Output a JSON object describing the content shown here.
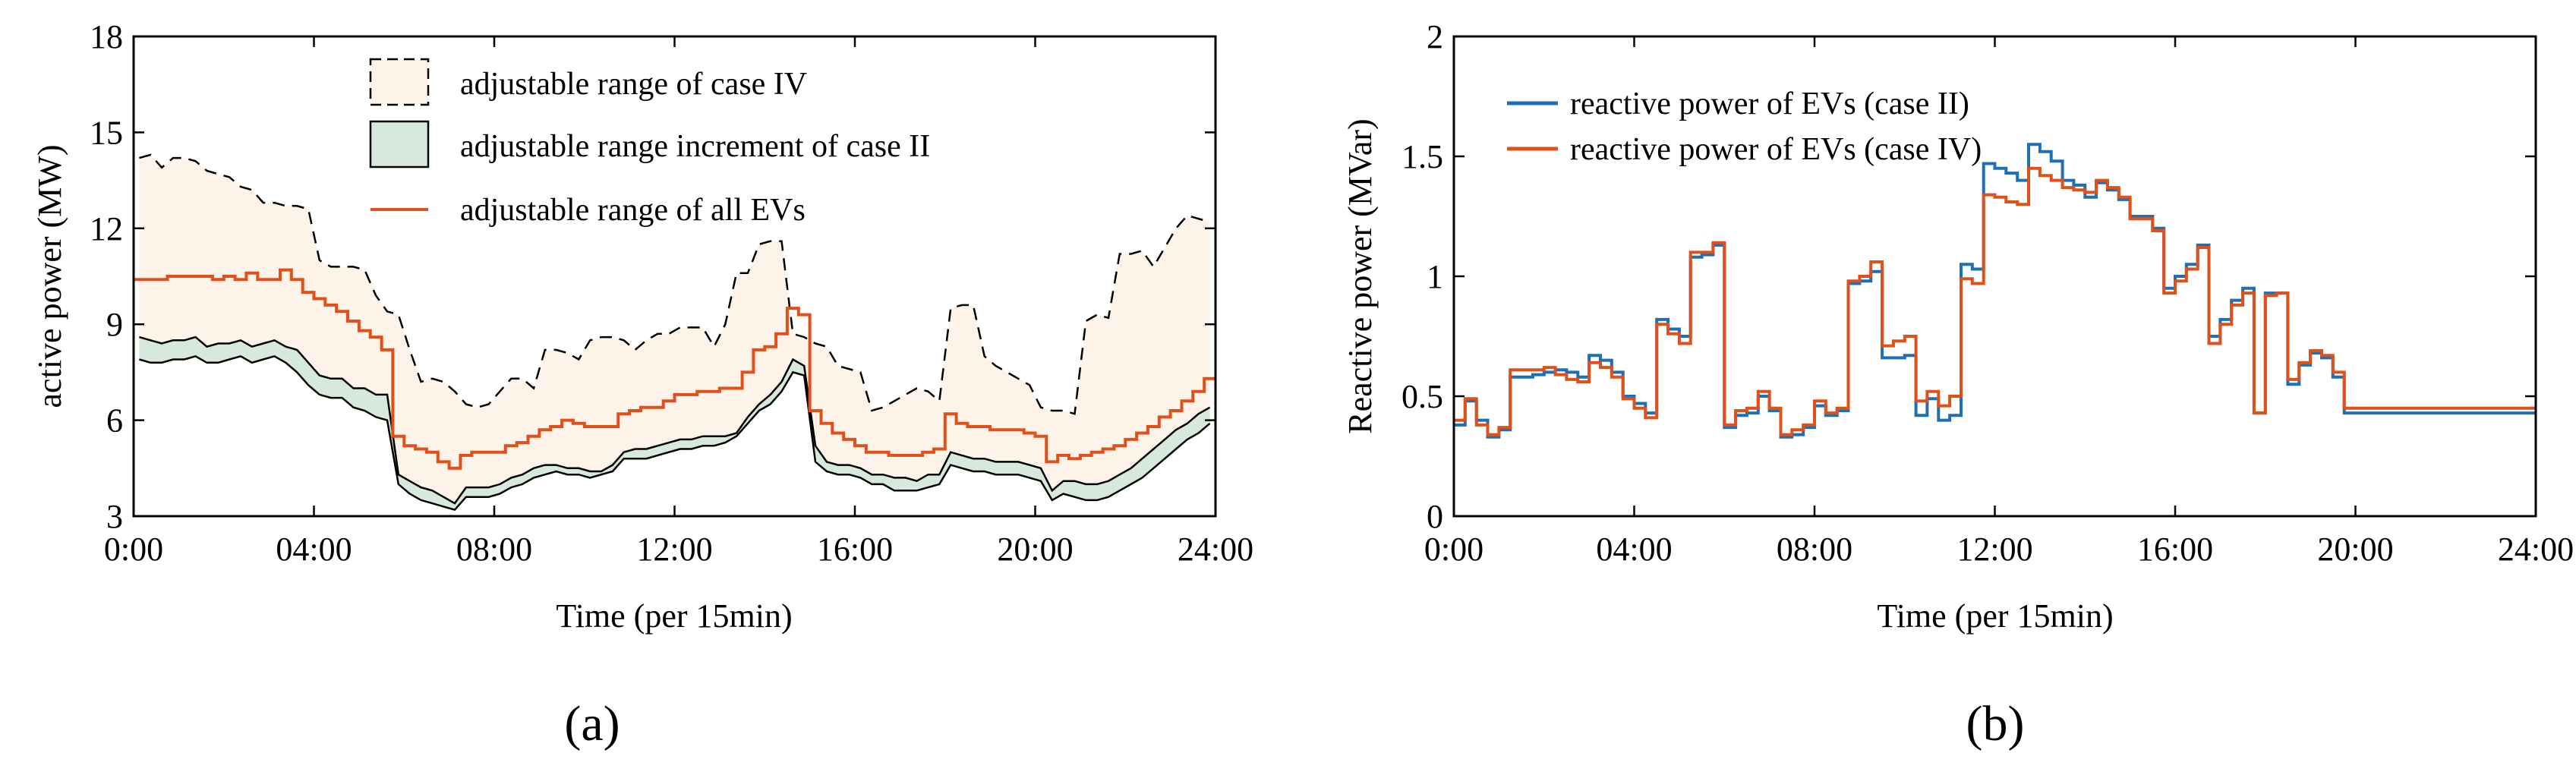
{
  "chart_data": [
    {
      "id": "a",
      "type": "line",
      "panel_label": "(a)",
      "xlabel": "Time (per 15min)",
      "ylabel": "active power (MW)",
      "xlim": [
        0,
        96
      ],
      "ylim": [
        3,
        18
      ],
      "x_ticks": [
        0,
        16,
        32,
        48,
        64,
        80,
        96
      ],
      "x_tick_labels": [
        "0:00",
        "04:00",
        "08:00",
        "12:00",
        "16:00",
        "20:00",
        "24:00"
      ],
      "y_ticks": [
        3,
        6,
        9,
        12,
        15,
        18
      ],
      "y_tick_labels": [
        "3",
        "6",
        "9",
        "12",
        "15",
        "18"
      ],
      "legend_position": "top-center",
      "legend": [
        "adjustable range of case IV",
        "adjustable range increment  of case II",
        "adjustable range of all EVs"
      ],
      "colors": {
        "case_iv_fill": "#fdf3e8",
        "case_ii_fill": "#d6e9dc",
        "all_evs_line": "#e0501a",
        "dashed_line": "#000000"
      },
      "series": [
        {
          "name": "upper bound case IV",
          "values": [
            14.2,
            14.3,
            13.9,
            14.2,
            14.2,
            14.1,
            13.8,
            13.7,
            13.6,
            13.3,
            13.2,
            12.8,
            12.8,
            12.7,
            12.7,
            12.6,
            11.0,
            10.8,
            10.8,
            10.8,
            10.7,
            9.9,
            9.4,
            9.3,
            8.2,
            7.2,
            7.3,
            7.2,
            6.9,
            6.5,
            6.4,
            6.5,
            6.9,
            7.3,
            7.3,
            7.0,
            8.2,
            8.2,
            8.1,
            7.9,
            8.5,
            8.6,
            8.6,
            8.5,
            8.2,
            8.5,
            8.7,
            8.7,
            8.9,
            8.9,
            8.9,
            8.3,
            9.0,
            10.6,
            10.6,
            11.5,
            11.6,
            11.6,
            8.7,
            8.6,
            8.4,
            8.3,
            7.7,
            7.6,
            7.5,
            6.3,
            6.4,
            6.6,
            6.8,
            7.0,
            6.9,
            6.6,
            9.5,
            9.6,
            9.6,
            8.0,
            7.7,
            7.5,
            7.3,
            7.1,
            6.4,
            6.3,
            6.3,
            6.2,
            9.1,
            9.3,
            9.2,
            11.2,
            11.2,
            11.3,
            10.8,
            11.4,
            12.0,
            12.4,
            12.3,
            12.2
          ]
        },
        {
          "name": "adjustable range of all EVs",
          "values": [
            10.4,
            10.4,
            10.4,
            10.5,
            10.5,
            10.5,
            10.5,
            10.4,
            10.5,
            10.4,
            10.6,
            10.4,
            10.4,
            10.7,
            10.4,
            10.0,
            9.8,
            9.6,
            9.4,
            9.1,
            8.8,
            8.6,
            8.2,
            5.5,
            5.2,
            5.1,
            5.0,
            4.7,
            4.5,
            4.9,
            5.0,
            5.0,
            5.0,
            5.2,
            5.3,
            5.5,
            5.7,
            5.8,
            6.0,
            5.9,
            5.8,
            5.8,
            5.8,
            6.2,
            6.3,
            6.4,
            6.4,
            6.6,
            6.8,
            6.8,
            6.9,
            6.9,
            7.0,
            7.0,
            7.5,
            8.2,
            8.3,
            8.7,
            9.5,
            9.3,
            6.3,
            5.9,
            5.6,
            5.4,
            5.2,
            5.0,
            5.0,
            4.9,
            4.9,
            4.9,
            5.0,
            5.1,
            6.2,
            5.9,
            5.8,
            5.8,
            5.7,
            5.7,
            5.7,
            5.6,
            5.5,
            4.7,
            4.9,
            4.8,
            4.9,
            5.0,
            5.1,
            5.2,
            5.4,
            5.6,
            5.8,
            6.1,
            6.3,
            6.6,
            6.9,
            7.3
          ]
        },
        {
          "name": "upper bound case II increment",
          "values": [
            8.6,
            8.5,
            8.4,
            8.5,
            8.5,
            8.6,
            8.3,
            8.4,
            8.4,
            8.5,
            8.3,
            8.4,
            8.5,
            8.3,
            8.2,
            7.8,
            7.4,
            7.3,
            7.3,
            7.0,
            7.0,
            6.8,
            6.8,
            4.3,
            4.1,
            3.9,
            3.8,
            3.6,
            3.4,
            3.9,
            3.9,
            3.9,
            4.0,
            4.2,
            4.3,
            4.5,
            4.6,
            4.6,
            4.5,
            4.5,
            4.4,
            4.4,
            4.6,
            5.0,
            5.1,
            5.1,
            5.2,
            5.3,
            5.4,
            5.4,
            5.5,
            5.5,
            5.5,
            5.6,
            6.1,
            6.5,
            6.8,
            7.2,
            7.9,
            7.7,
            5.2,
            4.7,
            4.6,
            4.6,
            4.5,
            4.3,
            4.3,
            4.2,
            4.2,
            4.1,
            4.3,
            4.3,
            5.0,
            4.9,
            4.8,
            4.8,
            4.7,
            4.7,
            4.7,
            4.6,
            4.5,
            3.8,
            4.1,
            4.1,
            4.0,
            4.0,
            4.1,
            4.3,
            4.5,
            4.8,
            5.1,
            5.4,
            5.7,
            5.9,
            6.2,
            6.4
          ]
        },
        {
          "name": "lower bound",
          "values": [
            7.9,
            7.8,
            7.8,
            7.9,
            7.9,
            8.0,
            7.8,
            7.8,
            7.9,
            8.0,
            7.8,
            7.9,
            8.0,
            7.8,
            7.5,
            7.1,
            6.8,
            6.7,
            6.7,
            6.4,
            6.3,
            6.1,
            6.0,
            4.0,
            3.7,
            3.5,
            3.4,
            3.3,
            3.2,
            3.6,
            3.6,
            3.6,
            3.7,
            3.9,
            4.0,
            4.2,
            4.3,
            4.4,
            4.3,
            4.3,
            4.2,
            4.3,
            4.4,
            4.8,
            4.8,
            4.8,
            4.9,
            5.0,
            5.1,
            5.1,
            5.2,
            5.2,
            5.3,
            5.5,
            5.9,
            6.3,
            6.5,
            6.9,
            7.5,
            7.4,
            4.7,
            4.4,
            4.3,
            4.3,
            4.2,
            4.0,
            4.0,
            3.8,
            3.8,
            3.8,
            3.9,
            4.0,
            4.6,
            4.5,
            4.4,
            4.4,
            4.3,
            4.3,
            4.3,
            4.2,
            4.1,
            3.5,
            3.7,
            3.6,
            3.5,
            3.5,
            3.6,
            3.8,
            4.0,
            4.2,
            4.5,
            4.8,
            5.1,
            5.4,
            5.6,
            5.9
          ]
        }
      ]
    },
    {
      "id": "b",
      "type": "line",
      "panel_label": "(b)",
      "xlabel": "Time (per 15min)",
      "ylabel": "Reactive power (MVar)",
      "xlim": [
        0,
        96
      ],
      "ylim": [
        0,
        2
      ],
      "x_ticks": [
        0,
        16,
        32,
        48,
        64,
        80,
        96
      ],
      "x_tick_labels": [
        "0:00",
        "04:00",
        "08:00",
        "12:00",
        "16:00",
        "20:00",
        "24:00"
      ],
      "y_ticks": [
        0,
        0.5,
        1,
        1.5,
        2
      ],
      "y_tick_labels": [
        "0",
        "0.5",
        "1",
        "1.5",
        "2"
      ],
      "legend_position": "top-left",
      "legend": [
        "reactive power of EVs (case II)",
        "reactive power of EVs (case IV)"
      ],
      "colors": {
        "case_ii": "#1f6fb4",
        "case_iv": "#e0501a"
      },
      "series": [
        {
          "name": "reactive power of EVs (case II)",
          "values": [
            0.38,
            0.48,
            0.4,
            0.33,
            0.36,
            0.58,
            0.58,
            0.59,
            0.6,
            0.61,
            0.6,
            0.58,
            0.67,
            0.65,
            0.6,
            0.5,
            0.47,
            0.43,
            0.82,
            0.78,
            0.75,
            1.08,
            1.09,
            1.13,
            0.37,
            0.42,
            0.43,
            0.5,
            0.44,
            0.33,
            0.34,
            0.37,
            0.46,
            0.42,
            0.44,
            0.97,
            0.98,
            1.02,
            0.66,
            0.66,
            0.67,
            0.42,
            0.49,
            0.4,
            0.42,
            1.05,
            1.03,
            1.47,
            1.45,
            1.43,
            1.4,
            1.55,
            1.52,
            1.48,
            1.4,
            1.38,
            1.33,
            1.39,
            1.36,
            1.32,
            1.25,
            1.25,
            1.2,
            0.95,
            1.0,
            1.05,
            1.13,
            0.75,
            0.82,
            0.9,
            0.95,
            0.43,
            0.93,
            0.93,
            0.55,
            0.63,
            0.68,
            0.66,
            0.58,
            0.43,
            0.43,
            0.43,
            0.43,
            0.43,
            0.43,
            0.43,
            0.43,
            0.43,
            0.43,
            0.43,
            0.43,
            0.43,
            0.43,
            0.43,
            0.43,
            0.43
          ]
        },
        {
          "name": "reactive power of EVs (case IV)",
          "values": [
            0.4,
            0.49,
            0.38,
            0.34,
            0.37,
            0.61,
            0.61,
            0.61,
            0.62,
            0.59,
            0.57,
            0.56,
            0.64,
            0.62,
            0.58,
            0.49,
            0.45,
            0.41,
            0.8,
            0.76,
            0.72,
            1.1,
            1.1,
            1.14,
            0.38,
            0.44,
            0.45,
            0.52,
            0.45,
            0.34,
            0.36,
            0.38,
            0.48,
            0.43,
            0.45,
            0.98,
            1.0,
            1.06,
            0.71,
            0.73,
            0.75,
            0.48,
            0.52,
            0.46,
            0.5,
            0.99,
            0.97,
            1.34,
            1.33,
            1.31,
            1.3,
            1.45,
            1.42,
            1.4,
            1.37,
            1.36,
            1.35,
            1.4,
            1.37,
            1.33,
            1.24,
            1.24,
            1.19,
            0.93,
            0.98,
            1.03,
            1.12,
            0.72,
            0.8,
            0.88,
            0.93,
            0.43,
            0.92,
            0.93,
            0.57,
            0.64,
            0.69,
            0.67,
            0.6,
            0.45,
            0.45,
            0.45,
            0.45,
            0.45,
            0.45,
            0.45,
            0.45,
            0.45,
            0.45,
            0.45,
            0.45,
            0.45,
            0.45,
            0.45,
            0.45,
            0.45
          ]
        }
      ]
    }
  ]
}
